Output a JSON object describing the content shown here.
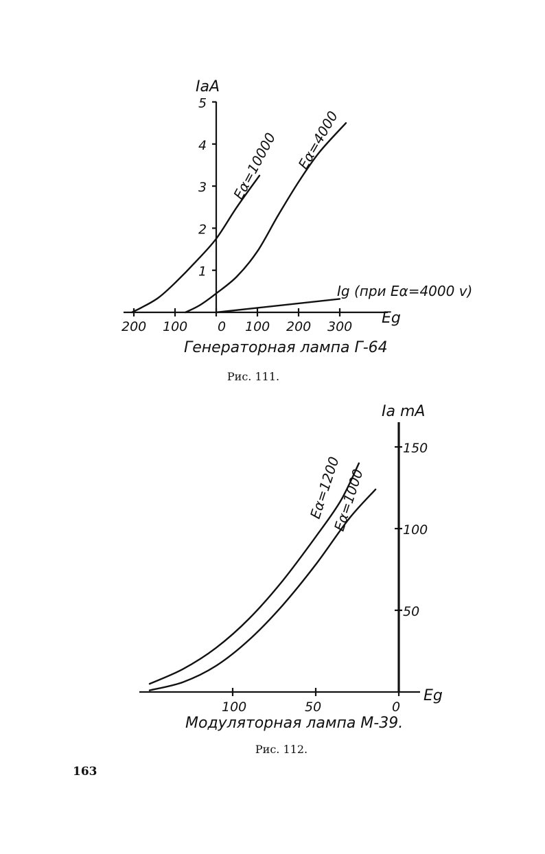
{
  "chart_data": [
    {
      "type": "line",
      "title": "",
      "subtitle": "Генераторная лампа Г-64",
      "xlabel": "Eg",
      "ylabel": "IaA",
      "x_ticks": [
        "200",
        "100",
        "0",
        "100",
        "200",
        "300"
      ],
      "y_ticks": [
        "1",
        "2",
        "3",
        "4",
        "5"
      ],
      "xlim": [
        -215,
        400
      ],
      "ylim": [
        0,
        5
      ],
      "grid": false,
      "series": [
        {
          "name": "Eα=10000",
          "points": [
            [
              -205,
              0
            ],
            [
              -180,
              0.12
            ],
            [
              -140,
              0.35
            ],
            [
              -100,
              0.7
            ],
            [
              -50,
              1.2
            ],
            [
              0,
              1.75
            ],
            [
              50,
              2.5
            ],
            [
              105,
              3.25
            ]
          ]
        },
        {
          "name": "Eα=4000",
          "points": [
            [
              -75,
              0
            ],
            [
              -40,
              0.17
            ],
            [
              0,
              0.45
            ],
            [
              50,
              0.85
            ],
            [
              100,
              1.45
            ],
            [
              150,
              2.3
            ],
            [
              200,
              3.1
            ],
            [
              250,
              3.8
            ],
            [
              315,
              4.5
            ]
          ]
        },
        {
          "name": "Ig (при Eα=4000 v)",
          "points": [
            [
              0,
              0
            ],
            [
              300,
              0.32
            ]
          ]
        }
      ]
    },
    {
      "type": "line",
      "title": "",
      "subtitle": "Модуляторная лампа М-39.",
      "xlabel": "Eg",
      "ylabel": "Ia mA",
      "x_ticks": [
        "100",
        "50",
        "0"
      ],
      "y_ticks": [
        "50",
        "100",
        "150"
      ],
      "xlim": [
        -155,
        15
      ],
      "ylim": [
        0,
        160
      ],
      "grid": false,
      "series": [
        {
          "name": "Eα=1200",
          "points": [
            [
              -150,
              5
            ],
            [
              -130,
              14
            ],
            [
              -110,
              27
            ],
            [
              -90,
              45
            ],
            [
              -70,
              68
            ],
            [
              -50,
              95
            ],
            [
              -35,
              117
            ],
            [
              -24,
              140
            ]
          ]
        },
        {
          "name": "Eα=1000",
          "points": [
            [
              -150,
              1
            ],
            [
              -130,
              6
            ],
            [
              -110,
              16
            ],
            [
              -90,
              32
            ],
            [
              -70,
              53
            ],
            [
              -50,
              78
            ],
            [
              -30,
              106
            ],
            [
              -14,
              124
            ]
          ]
        }
      ]
    }
  ],
  "captions": {
    "fig111": "Рис. 111.",
    "fig112": "Рис. 112."
  },
  "page_number": "163"
}
